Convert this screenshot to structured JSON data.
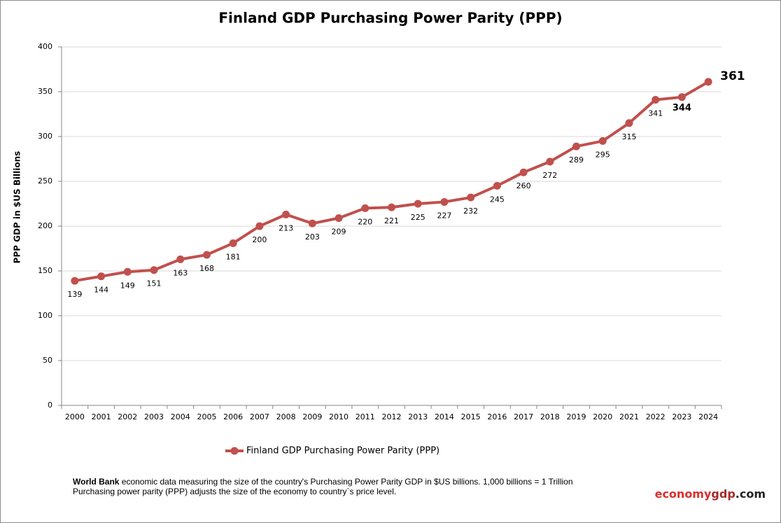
{
  "chart_data": {
    "type": "line",
    "title": "Finland GDP Purchasing Power Parity (PPP)",
    "y_label": "PPP GDP in $US Billions",
    "categories": [
      "2000",
      "2001",
      "2002",
      "2003",
      "2004",
      "2005",
      "2006",
      "2007",
      "2008",
      "2009",
      "2010",
      "2011",
      "2012",
      "2013",
      "2014",
      "2015",
      "2016",
      "2017",
      "2018",
      "2019",
      "2020",
      "2021",
      "2022",
      "2023",
      "2024"
    ],
    "series": [
      {
        "name": "Finland GDP Purchasing Power Parity (PPP)",
        "color": "#c0504d",
        "values": [
          139,
          144,
          149,
          151,
          163,
          168,
          181,
          200,
          213,
          203,
          209,
          220,
          221,
          225,
          227,
          232,
          245,
          260,
          272,
          289,
          295,
          315,
          341,
          344,
          361
        ]
      }
    ],
    "ylim": [
      0,
      400
    ],
    "yticks": [
      0,
      50,
      100,
      150,
      200,
      250,
      300,
      350,
      400
    ],
    "grid": true,
    "legend": "bottom"
  },
  "footer": {
    "source": "World Bank",
    "line1": " economic data  measuring the size of the country's Purchasing Power Parity GDP in $US billions. 1,000 billions = 1 Trillion",
    "line2": "Purchasing power parity (PPP) adjusts the size of the economy to country`s price level.",
    "brand": [
      "economy",
      "gdp",
      ".com"
    ]
  }
}
